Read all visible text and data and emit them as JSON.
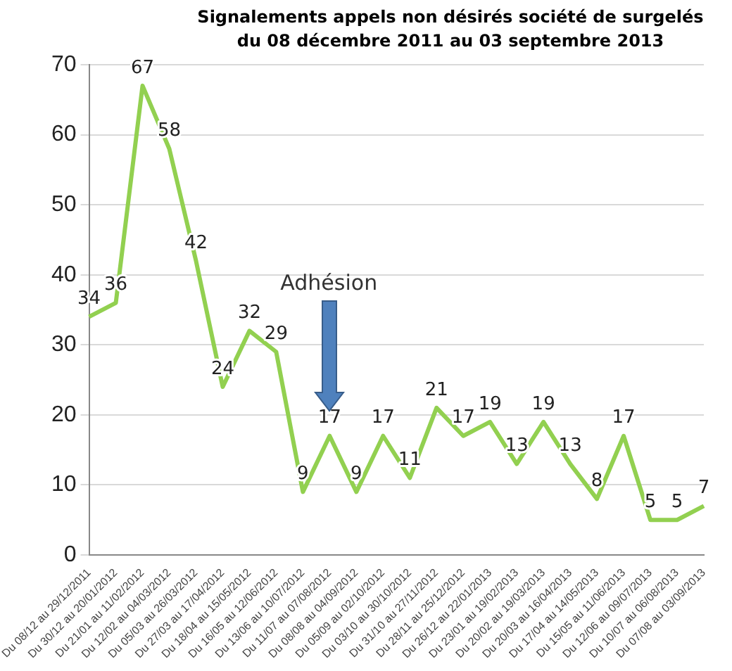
{
  "chart_data": {
    "type": "line",
    "title": "Signalements appels non désirés société de surgelés",
    "subtitle": "du 08  décembre 2011  au 03 septembre 2013",
    "categories": [
      "Du 08/12 au 29/12/2011",
      "Du 30/12 au 20/01/2012",
      "Du 21/01 au 11/02/2012",
      "Du 12/02 au 04/03/2012",
      "Du 05/03 au 26/03/2012",
      "Du 27/03 au 17/04/2012",
      "Du 18/04 au 15/05/2012",
      "Du 16/05 au 12/06/2012",
      "Du 13/06 au 10/07/2012",
      "Du 11/07 au 07/08/2012",
      "Du 08/08 au 04/09/2012",
      "Du 05/09 au 02/10/2012",
      "Du 03/10 au 30/10/2012",
      "Du 31/10 au 27/11/2012",
      "Du 28/11 au 25/12/2012",
      "Du 26/12 au 22/01/2013",
      "Du 23/01 au 19/02/2013",
      "Du 20/02 au 19/03/2013",
      "Du 20/03 au 16/04/2013",
      "Du 17/04 au 14/05/2013",
      "Du 15/05 au 11/06/2013",
      "Du 12/06 au 09/07/2013",
      "Du 10/07 au 06/08/2013",
      "Du 07/08 au 03/09/2013"
    ],
    "series": [
      {
        "color": "#92d050",
        "values": [
          34,
          36,
          67,
          58,
          42,
          24,
          32,
          29,
          9,
          17,
          9,
          17,
          11,
          21,
          17,
          19,
          13,
          19,
          13,
          8,
          17,
          5,
          5,
          7
        ]
      }
    ],
    "ylim": [
      0,
      70
    ],
    "yticks": [
      0,
      10,
      20,
      30,
      40,
      50,
      60,
      70
    ],
    "grid": "y",
    "data_labels": true,
    "marker": "none",
    "line_style": "solid",
    "annotations": [
      "Adhésion"
    ]
  }
}
